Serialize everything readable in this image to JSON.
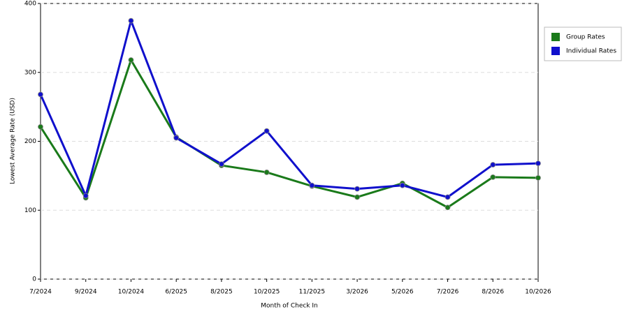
{
  "chart_data": {
    "type": "line",
    "x_label": "Month of Check In",
    "y_label": "Lowest Average Rate (USD)",
    "categories": [
      "7/2024",
      "9/2024",
      "10/2024",
      "6/2025",
      "8/2025",
      "10/2025",
      "11/2025",
      "3/2026",
      "5/2026",
      "7/2026",
      "8/2026",
      "10/2026"
    ],
    "series": [
      {
        "name": "Group Rates",
        "color": "#1a7a1a",
        "values": [
          221,
          118,
          318,
          206,
          165,
          155,
          135,
          119,
          139,
          104,
          148,
          147
        ]
      },
      {
        "name": "Individual Rates",
        "color": "#1010cc",
        "values": [
          268,
          121,
          375,
          205,
          167,
          215,
          136,
          131,
          136,
          119,
          166,
          168
        ]
      }
    ],
    "ylim": [
      0,
      400
    ],
    "yticks": [
      0,
      100,
      200,
      300,
      400
    ],
    "grid": true,
    "legend": "right"
  }
}
